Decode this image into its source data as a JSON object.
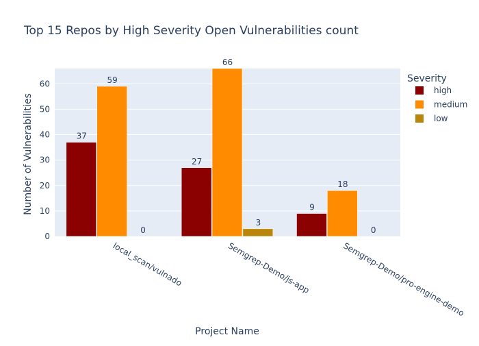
{
  "chart_data": {
    "type": "bar",
    "title": "Top 15 Repos by High Severity Open Vulnerabilities count",
    "xlabel": "Project Name",
    "ylabel": "Number of Vulnerabilities",
    "categories": [
      "local_scan/vulnado",
      "Semgrep-Demo/js-app",
      "Semgrep-Demo/pro-engine-demo"
    ],
    "series": [
      {
        "name": "high",
        "color": "#8b0000",
        "values": [
          37,
          27,
          9
        ]
      },
      {
        "name": "medium",
        "color": "#ff8c00",
        "values": [
          59,
          66,
          18
        ]
      },
      {
        "name": "low",
        "color": "#b8860b",
        "values": [
          0,
          3,
          0
        ]
      }
    ],
    "yticks": [
      0,
      10,
      20,
      30,
      40,
      50,
      60
    ],
    "ylim": [
      0,
      66
    ],
    "grid": true,
    "legend": {
      "title": "Severity",
      "position": "right"
    },
    "plot_background": "#e5ecf6"
  }
}
